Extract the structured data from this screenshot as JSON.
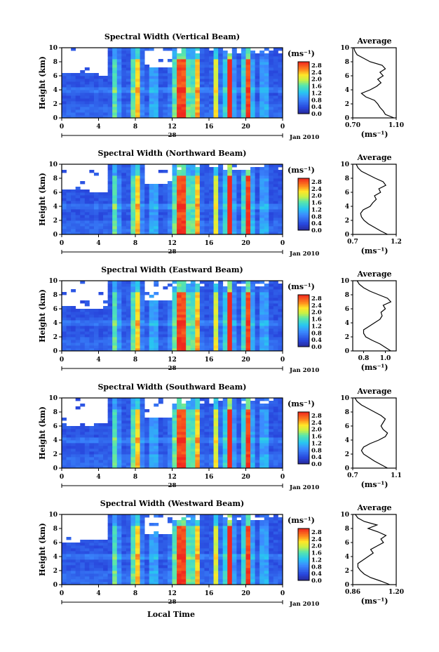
{
  "page": {
    "xlabel": "Local Time"
  },
  "chart_data": [
    {
      "type": "heatmap",
      "title": "Spectral Width (Vertical Beam)",
      "ylabel": "Height (km)",
      "yticks": [
        "0",
        "2",
        "4",
        "6",
        "8",
        "10"
      ],
      "ylim": [
        0,
        10
      ],
      "xticks": [
        "0",
        "4",
        "8",
        "12",
        "16",
        "20",
        "0"
      ],
      "xlim": [
        0,
        24
      ],
      "date_day": "28",
      "date_label": "Jan 2010",
      "colorbar": {
        "unit": "(ms⁻¹)",
        "ticks": [
          "0.0",
          "0.4",
          "0.8",
          "1.2",
          "1.6",
          "2.0",
          "2.4",
          "2.8"
        ],
        "range": [
          0.0,
          3.0
        ]
      },
      "profile": {
        "title": "Average",
        "xticks": [
          "0.70",
          "1.10"
        ],
        "xlim": [
          0.7,
          1.1
        ],
        "xlabel": "(ms⁻¹)",
        "yticks": [
          "0",
          "2",
          "4",
          "6",
          "8",
          "10"
        ],
        "heights": [
          0,
          0.5,
          1,
          1.5,
          2,
          2.5,
          3,
          3.5,
          4,
          4.5,
          5,
          5.5,
          6,
          6.5,
          7,
          7.5,
          8,
          8.5,
          9,
          9.5,
          10
        ],
        "values": [
          1.08,
          1.0,
          0.98,
          0.95,
          0.93,
          0.9,
          0.82,
          0.78,
          0.86,
          0.92,
          0.96,
          0.93,
          0.98,
          0.95,
          1.0,
          0.97,
          0.86,
          0.8,
          0.74,
          0.72,
          0.71
        ]
      }
    },
    {
      "type": "heatmap",
      "title": "Spectral Width (Northward Beam)",
      "ylabel": "Height (km)",
      "yticks": [
        "0",
        "2",
        "4",
        "6",
        "8",
        "10"
      ],
      "ylim": [
        0,
        10
      ],
      "xticks": [
        "0",
        "4",
        "8",
        "12",
        "16",
        "20",
        "0"
      ],
      "xlim": [
        0,
        24
      ],
      "date_day": "28",
      "date_label": "Jan 2010",
      "colorbar": {
        "unit": "(ms⁻¹)",
        "ticks": [
          "0.0",
          "0.4",
          "0.8",
          "1.2",
          "1.6",
          "2.0",
          "2.4",
          "2.8"
        ],
        "range": [
          0.0,
          3.0
        ]
      },
      "profile": {
        "title": "Average",
        "xticks": [
          "0.7",
          "1.2"
        ],
        "xlim": [
          0.7,
          1.2
        ],
        "xlabel": "(ms⁻¹)",
        "yticks": [
          "0",
          "2",
          "4",
          "6",
          "8",
          "10"
        ],
        "heights": [
          0,
          0.5,
          1,
          1.5,
          2,
          2.5,
          3,
          3.5,
          4,
          4.5,
          5,
          5.5,
          6,
          6.5,
          7,
          7.5,
          8,
          8.5,
          9,
          9.5,
          10
        ],
        "values": [
          1.1,
          1.02,
          0.95,
          0.88,
          0.83,
          0.8,
          0.79,
          0.82,
          0.9,
          0.93,
          0.97,
          0.95,
          1.02,
          1.0,
          1.08,
          1.05,
          0.96,
          0.88,
          0.8,
          0.76,
          0.74
        ]
      }
    },
    {
      "type": "heatmap",
      "title": "Spectral Width (Eastward Beam)",
      "ylabel": "Height (km)",
      "yticks": [
        "0",
        "2",
        "4",
        "6",
        "8",
        "10"
      ],
      "ylim": [
        0,
        10
      ],
      "xticks": [
        "0",
        "4",
        "8",
        "12",
        "16",
        "20",
        "0"
      ],
      "xlim": [
        0,
        24
      ],
      "date_day": "28",
      "date_label": "Jan 2010",
      "colorbar": {
        "unit": "(ms⁻¹)",
        "ticks": [
          "0.0",
          "0.4",
          "0.8",
          "1.2",
          "1.6",
          "2.0",
          "2.4",
          "2.8"
        ],
        "range": [
          0.0,
          3.0
        ]
      },
      "profile": {
        "title": "Average",
        "xticks": [
          "0.8",
          "1.0"
        ],
        "xlim": [
          0.7,
          1.1
        ],
        "xlabel": "(ms⁻¹)",
        "yticks": [
          "0",
          "2",
          "4",
          "6",
          "8",
          "10"
        ],
        "heights": [
          0,
          0.5,
          1,
          1.5,
          2,
          2.5,
          3,
          3.5,
          4,
          4.5,
          5,
          5.5,
          6,
          6.5,
          7,
          7.5,
          8,
          8.5,
          9,
          9.5,
          10
        ],
        "values": [
          1.05,
          1.0,
          0.95,
          0.88,
          0.82,
          0.8,
          0.8,
          0.85,
          0.9,
          0.95,
          0.97,
          0.96,
          1.0,
          0.98,
          1.05,
          1.02,
          0.94,
          0.86,
          0.8,
          0.76,
          0.74
        ]
      }
    },
    {
      "type": "heatmap",
      "title": "Spectral Width (Southward Beam)",
      "ylabel": "Height (km)",
      "yticks": [
        "0",
        "2",
        "4",
        "6",
        "8",
        "10"
      ],
      "ylim": [
        0,
        10
      ],
      "xticks": [
        "0",
        "4",
        "8",
        "12",
        "16",
        "20",
        "0"
      ],
      "xlim": [
        0,
        24
      ],
      "date_day": "28",
      "date_label": "Jan 2010",
      "colorbar": {
        "unit": "(ms⁻¹)",
        "ticks": [
          "0.0",
          "0.4",
          "0.8",
          "1.2",
          "1.6",
          "2.0",
          "2.4",
          "2.8"
        ],
        "range": [
          0.0,
          3.0
        ]
      },
      "profile": {
        "title": "Average",
        "xticks": [
          "0.7",
          "1.1"
        ],
        "xlim": [
          0.7,
          1.1
        ],
        "xlabel": "(ms⁻¹)",
        "yticks": [
          "0",
          "2",
          "4",
          "6",
          "8",
          "10"
        ],
        "heights": [
          0,
          0.5,
          1,
          1.5,
          2,
          2.5,
          3,
          3.5,
          4,
          4.5,
          5,
          5.5,
          6,
          6.5,
          7,
          7.5,
          8,
          8.5,
          9,
          9.5,
          10
        ],
        "values": [
          1.02,
          0.96,
          0.9,
          0.85,
          0.8,
          0.78,
          0.8,
          0.86,
          0.94,
          1.0,
          1.02,
          0.98,
          0.96,
          0.98,
          1.0,
          0.96,
          0.9,
          0.84,
          0.78,
          0.74,
          0.72
        ]
      }
    },
    {
      "type": "heatmap",
      "title": "Spectral Width (Westward Beam)",
      "ylabel": "Height (km)",
      "yticks": [
        "0",
        "2",
        "4",
        "6",
        "8",
        "10"
      ],
      "ylim": [
        0,
        10
      ],
      "xticks": [
        "0",
        "4",
        "8",
        "12",
        "16",
        "20",
        "0"
      ],
      "xlim": [
        0,
        24
      ],
      "date_day": "28",
      "date_label": "Jan 2010",
      "colorbar": {
        "unit": "(ms⁻¹)",
        "ticks": [
          "0.0",
          "0.4",
          "0.8",
          "1.2",
          "1.6",
          "2.0",
          "2.4",
          "2.8"
        ],
        "range": [
          0.0,
          3.0
        ]
      },
      "profile": {
        "title": "Average",
        "xticks": [
          "0.86",
          "1.20"
        ],
        "xlim": [
          0.86,
          1.2
        ],
        "xlabel": "(ms⁻¹)",
        "yticks": [
          "0",
          "2",
          "4",
          "6",
          "8",
          "10"
        ],
        "heights": [
          0,
          0.5,
          1,
          1.5,
          2,
          2.5,
          3,
          3.5,
          4,
          4.5,
          5,
          5.5,
          6,
          6.5,
          7,
          7.5,
          8,
          8.5,
          9,
          9.5,
          10
        ],
        "values": [
          1.15,
          1.08,
          1.0,
          0.95,
          0.92,
          0.9,
          0.9,
          0.94,
          0.98,
          1.02,
          1.0,
          1.05,
          1.1,
          1.08,
          1.12,
          1.06,
          0.98,
          1.05,
          0.95,
          0.9,
          0.88
        ]
      }
    }
  ]
}
